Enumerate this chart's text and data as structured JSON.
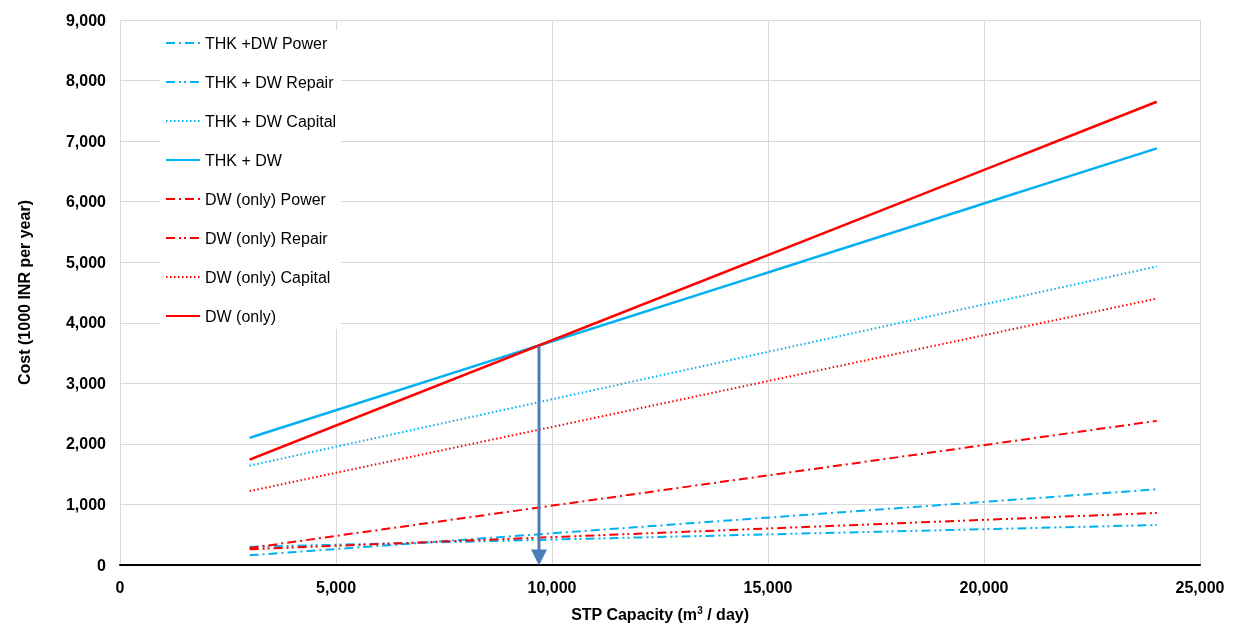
{
  "chart_data": {
    "type": "line",
    "xlabel": "STP Capacity (m$^{3}$ / day)",
    "ylabel": "Cost (1000 INR per year)",
    "x": [
      3000,
      24000
    ],
    "xlim": [
      0,
      25000
    ],
    "xticks": [
      {
        "value": 0,
        "label": "0"
      },
      {
        "value": 5000,
        "label": "5,000"
      },
      {
        "value": 10000,
        "label": "10,000"
      },
      {
        "value": 15000,
        "label": "15,000"
      },
      {
        "value": 20000,
        "label": "20,000"
      },
      {
        "value": 25000,
        "label": "25,000"
      }
    ],
    "ylim": [
      0,
      9000
    ],
    "yticks": [
      {
        "value": 0,
        "label": "0"
      },
      {
        "value": 1000,
        "label": "1,000"
      },
      {
        "value": 2000,
        "label": "2,000"
      },
      {
        "value": 3000,
        "label": "3,000"
      },
      {
        "value": 4000,
        "label": "4,000"
      },
      {
        "value": 5000,
        "label": "5,000"
      },
      {
        "value": 6000,
        "label": "6,000"
      },
      {
        "value": 7000,
        "label": "7,000"
      },
      {
        "value": 8000,
        "label": "8,000"
      },
      {
        "value": 9000,
        "label": "9,000"
      }
    ],
    "grid": true,
    "legend": "top left",
    "marker": "none",
    "series": [
      {
        "name": "THK +DW Power",
        "color": "#00b0f0",
        "line_style": "dashdot",
        "values": [
          160,
          1250
        ]
      },
      {
        "name": "THK + DW Repair",
        "color": "#00b0f0",
        "line_style": "dashdotdot",
        "values": [
          300,
          660
        ]
      },
      {
        "name": "THK + DW Capital",
        "color": "#00b0f0",
        "line_style": "dotted",
        "values": [
          1640,
          4930
        ]
      },
      {
        "name": "THK + DW",
        "color": "#00b0f0",
        "line_style": "solid",
        "values": [
          2100,
          6880
        ]
      },
      {
        "name": "DW (only) Power",
        "color": "#ff0000",
        "line_style": "dashdot",
        "values": [
          280,
          2380
        ]
      },
      {
        "name": "DW (only) Repair",
        "color": "#ff0000",
        "line_style": "dashdotdot",
        "values": [
          260,
          860
        ]
      },
      {
        "name": "DW (only) Capital",
        "color": "#ff0000",
        "line_style": "dotted",
        "values": [
          1220,
          4400
        ]
      },
      {
        "name": "DW (only)",
        "color": "#ff0000",
        "line_style": "solid",
        "values": [
          1740,
          7650
        ]
      }
    ]
  }
}
